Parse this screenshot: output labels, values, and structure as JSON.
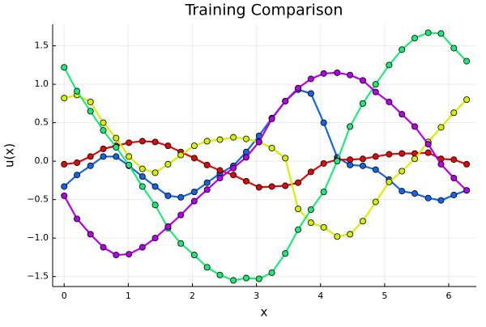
{
  "chart_data": {
    "type": "line",
    "title": "Training Comparison",
    "x_label": "x",
    "y_label": "u(x)",
    "x": [
      0,
      0.2,
      0.41,
      0.61,
      0.81,
      1.01,
      1.22,
      1.42,
      1.62,
      1.82,
      2.03,
      2.23,
      2.43,
      2.64,
      2.84,
      3.04,
      3.24,
      3.45,
      3.65,
      3.85,
      4.05,
      4.26,
      4.46,
      4.66,
      4.86,
      5.07,
      5.27,
      5.47,
      5.68,
      5.88,
      6.08,
      6.28
    ],
    "series": [
      {
        "color": "#1565e0",
        "values": [
          -0.33,
          -0.18,
          -0.06,
          0.06,
          0.06,
          -0.06,
          -0.2,
          -0.33,
          -0.45,
          -0.47,
          -0.4,
          -0.28,
          -0.16,
          -0.06,
          0.12,
          0.33,
          0.56,
          0.78,
          0.93,
          0.88,
          0.5,
          0.05,
          -0.05,
          -0.06,
          -0.11,
          -0.24,
          -0.39,
          -0.42,
          -0.48,
          -0.51,
          -0.44,
          -0.38
        ]
      },
      {
        "color": "#d90a0a",
        "values": [
          -0.04,
          -0.02,
          0.06,
          0.16,
          0.2,
          0.24,
          0.26,
          0.25,
          0.2,
          0.12,
          0.04,
          -0.05,
          -0.12,
          -0.18,
          -0.26,
          -0.34,
          -0.33,
          -0.32,
          -0.28,
          -0.14,
          -0.03,
          0.02,
          0.02,
          0.03,
          0.06,
          0.09,
          0.1,
          0.1,
          0.11,
          0.03,
          0.02,
          -0.04
        ]
      },
      {
        "color": "#d6f000",
        "values": [
          0.82,
          0.86,
          0.77,
          0.5,
          0.3,
          0.06,
          -0.1,
          -0.15,
          -0.04,
          0.08,
          0.2,
          0.26,
          0.28,
          0.31,
          0.29,
          0.25,
          0.17,
          0.04,
          -0.62,
          -0.8,
          -0.86,
          -0.98,
          -0.95,
          -0.78,
          -0.53,
          -0.27,
          -0.13,
          0.03,
          0.25,
          0.44,
          0.63,
          0.8
        ]
      },
      {
        "color": "#1fe87a",
        "values": [
          1.22,
          0.91,
          0.65,
          0.4,
          0.18,
          -0.05,
          -0.33,
          -0.57,
          -0.87,
          -1.07,
          -1.22,
          -1.38,
          -1.48,
          -1.55,
          -1.52,
          -1.53,
          -1.45,
          -1.2,
          -0.89,
          -0.63,
          -0.4,
          0.0,
          0.45,
          0.75,
          1.0,
          1.25,
          1.45,
          1.6,
          1.67,
          1.66,
          1.47,
          1.3
        ]
      },
      {
        "color": "#b400e6",
        "values": [
          -0.45,
          -0.75,
          -0.95,
          -1.12,
          -1.22,
          -1.21,
          -1.12,
          -1.0,
          -0.85,
          -0.7,
          -0.52,
          -0.37,
          -0.22,
          -0.09,
          0.05,
          0.25,
          0.55,
          0.78,
          0.95,
          1.07,
          1.14,
          1.15,
          1.12,
          1.05,
          0.9,
          0.77,
          0.61,
          0.45,
          0.22,
          -0.04,
          -0.22,
          -0.38
        ]
      }
    ],
    "xlim": [
      -0.18,
      6.43
    ],
    "ylim": [
      -1.63,
      1.78
    ],
    "xticks": [
      0,
      1,
      2,
      3,
      4,
      5,
      6
    ],
    "yticks": [
      {
        "value": -1.5,
        "label": "−1.5"
      },
      {
        "value": -1.0,
        "label": "−1.0"
      },
      {
        "value": -0.5,
        "label": "−0.5"
      },
      {
        "value": 0,
        "label": "0.0"
      },
      {
        "value": 0.5,
        "label": "0.5"
      },
      {
        "value": 1.0,
        "label": "1.0"
      },
      {
        "value": 1.5,
        "label": "1.5"
      }
    ],
    "grid": true
  }
}
